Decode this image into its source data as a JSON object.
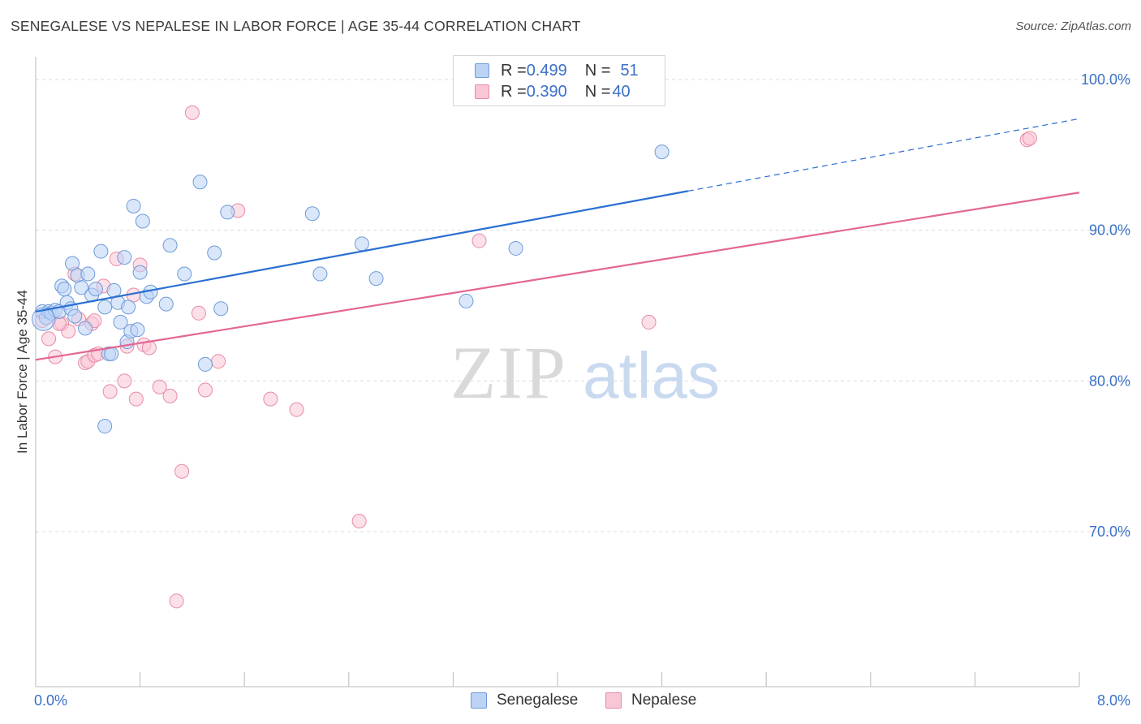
{
  "title": "SENEGALESE VS NEPALESE IN LABOR FORCE | AGE 35-44 CORRELATION CHART",
  "source": "Source: ZipAtlas.com",
  "watermark": {
    "zip": "ZIP",
    "atlas": "atlas"
  },
  "legend_top": {
    "rows": [
      {
        "r_label": "R = ",
        "r_value": "0.499",
        "n_label": "N = ",
        "n_value": "51"
      },
      {
        "r_label": "R = ",
        "r_value": "0.390",
        "n_label": "N = ",
        "n_value": "40"
      }
    ]
  },
  "colors": {
    "senegalese_fill": "#bcd3f5",
    "senegalese_stroke": "#6f9ad9",
    "senegalese_line": "#2a6fd1",
    "nepalese_fill": "#f9c6d6",
    "nepalese_stroke": "#e88aa8",
    "nepalese_line": "#e36791",
    "tick_label": "#3a70c8",
    "grid": "#dcdcdc"
  },
  "chart_data": {
    "type": "scatter",
    "title": "SENEGALESE VS NEPALESE IN LABOR FORCE | AGE 35-44 CORRELATION CHART",
    "xlabel": "",
    "ylabel": "In Labor Force | Age 35-44",
    "xlim": [
      0.0,
      8.0
    ],
    "ylim": [
      60.0,
      102.0
    ],
    "x_tick_labels": [
      {
        "value": 0.0,
        "label": "0.0%"
      },
      {
        "value": 8.0,
        "label": "8.0%"
      }
    ],
    "y_tick_labels": [
      {
        "value": 100.0,
        "label": "100.0%"
      },
      {
        "value": 90.0,
        "label": "90.0%"
      },
      {
        "value": 80.0,
        "label": "80.0%"
      },
      {
        "value": 70.0,
        "label": "70.0%"
      }
    ],
    "grid": true,
    "legend_position": "bottom-center",
    "series": [
      {
        "name": "Senegalese",
        "r": 0.499,
        "n": 51,
        "trend": {
          "x0": 0.0,
          "y0": 84.6,
          "x1": 5.0,
          "y1": 92.6,
          "dash_x1": 8.0,
          "dash_y1": 97.4
        },
        "points": [
          [
            0.05,
            84.6
          ],
          [
            0.08,
            84.2
          ],
          [
            0.1,
            84.6
          ],
          [
            0.12,
            84.5
          ],
          [
            0.15,
            84.7
          ],
          [
            0.18,
            84.6
          ],
          [
            0.2,
            86.3
          ],
          [
            0.22,
            86.1
          ],
          [
            0.24,
            85.2
          ],
          [
            0.27,
            84.8
          ],
          [
            0.28,
            87.8
          ],
          [
            0.3,
            84.3
          ],
          [
            0.32,
            87.0
          ],
          [
            0.35,
            86.2
          ],
          [
            0.38,
            83.5
          ],
          [
            0.4,
            87.1
          ],
          [
            0.43,
            85.7
          ],
          [
            0.46,
            86.1
          ],
          [
            0.5,
            88.6
          ],
          [
            0.53,
            84.9
          ],
          [
            0.56,
            81.8
          ],
          [
            0.58,
            81.8
          ],
          [
            0.6,
            86.0
          ],
          [
            0.63,
            85.2
          ],
          [
            0.65,
            83.9
          ],
          [
            0.68,
            88.2
          ],
          [
            0.7,
            82.6
          ],
          [
            0.71,
            84.9
          ],
          [
            0.73,
            83.3
          ],
          [
            0.75,
            91.6
          ],
          [
            0.78,
            83.4
          ],
          [
            0.8,
            87.2
          ],
          [
            0.82,
            90.6
          ],
          [
            0.85,
            85.6
          ],
          [
            0.88,
            85.9
          ],
          [
            1.0,
            85.1
          ],
          [
            1.03,
            89.0
          ],
          [
            1.14,
            87.1
          ],
          [
            1.26,
            93.2
          ],
          [
            1.3,
            81.1
          ],
          [
            1.37,
            88.5
          ],
          [
            1.42,
            84.8
          ],
          [
            1.47,
            91.2
          ],
          [
            2.12,
            91.1
          ],
          [
            2.18,
            87.1
          ],
          [
            2.5,
            89.1
          ],
          [
            2.61,
            86.8
          ],
          [
            3.3,
            85.3
          ],
          [
            3.68,
            88.8
          ],
          [
            4.8,
            95.2
          ],
          [
            0.53,
            77.0
          ]
        ]
      },
      {
        "name": "Nepalese",
        "r": 0.39,
        "n": 40,
        "trend": {
          "x0": 0.0,
          "y0": 81.4,
          "x1": 8.0,
          "y1": 92.5
        },
        "points": [
          [
            0.05,
            84.0
          ],
          [
            0.1,
            82.8
          ],
          [
            0.15,
            81.6
          ],
          [
            0.2,
            83.8
          ],
          [
            0.25,
            83.3
          ],
          [
            0.3,
            87.1
          ],
          [
            0.33,
            84.1
          ],
          [
            0.38,
            81.2
          ],
          [
            0.4,
            81.3
          ],
          [
            0.43,
            83.8
          ],
          [
            0.45,
            81.7
          ],
          [
            0.48,
            81.8
          ],
          [
            0.52,
            86.3
          ],
          [
            0.57,
            79.3
          ],
          [
            0.62,
            88.1
          ],
          [
            0.68,
            80.0
          ],
          [
            0.7,
            82.3
          ],
          [
            0.75,
            85.7
          ],
          [
            0.77,
            78.8
          ],
          [
            0.8,
            87.7
          ],
          [
            0.83,
            82.4
          ],
          [
            0.87,
            82.2
          ],
          [
            0.95,
            79.6
          ],
          [
            1.03,
            79.0
          ],
          [
            1.12,
            74.0
          ],
          [
            1.2,
            97.8
          ],
          [
            1.25,
            84.5
          ],
          [
            1.3,
            79.4
          ],
          [
            1.4,
            81.3
          ],
          [
            1.55,
            91.3
          ],
          [
            1.8,
            78.8
          ],
          [
            2.0,
            78.1
          ],
          [
            2.48,
            70.7
          ],
          [
            3.4,
            89.3
          ],
          [
            4.7,
            83.9
          ],
          [
            7.6,
            96.0
          ],
          [
            7.62,
            96.1
          ],
          [
            1.08,
            65.4
          ],
          [
            0.18,
            83.8
          ],
          [
            0.45,
            84.0
          ]
        ]
      }
    ]
  }
}
